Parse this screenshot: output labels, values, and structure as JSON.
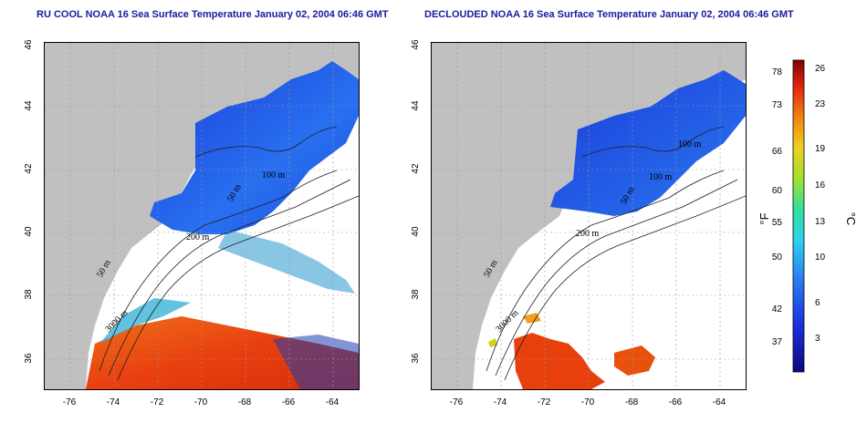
{
  "left_panel": {
    "title": "RU COOL NOAA 16 Sea Surface Temperature January 02, 2004 06:46 GMT",
    "contour_labels": [
      "50 m",
      "200 m",
      "100 m",
      "50 m",
      "3000 m"
    ]
  },
  "right_panel": {
    "title": "DECLOUDED NOAA 16 Sea Surface Temperature January 02, 2004 06:46 GMT",
    "contour_labels": [
      "50 m",
      "200 m",
      "100 m",
      "100 m",
      "50 m",
      "3000 m"
    ]
  },
  "axes": {
    "x_ticks": [
      "-76",
      "-74",
      "-72",
      "-70",
      "-68",
      "-66",
      "-64"
    ],
    "y_ticks": [
      "46",
      "44",
      "42",
      "40",
      "38",
      "36"
    ]
  },
  "colorbar": {
    "fahrenheit_unit": "°F",
    "celsius_unit": "°C",
    "fahrenheit_ticks": [
      "78",
      "73",
      "66",
      "60",
      "55",
      "50",
      "42",
      "37"
    ],
    "celsius_ticks": [
      "26",
      "23",
      "19",
      "16",
      "13",
      "10",
      "6",
      "3"
    ]
  },
  "colors": {
    "land": "#c0c0c0",
    "cold": "#1e50e6",
    "warm": "#e8400c",
    "title": "#1a1aa0"
  }
}
